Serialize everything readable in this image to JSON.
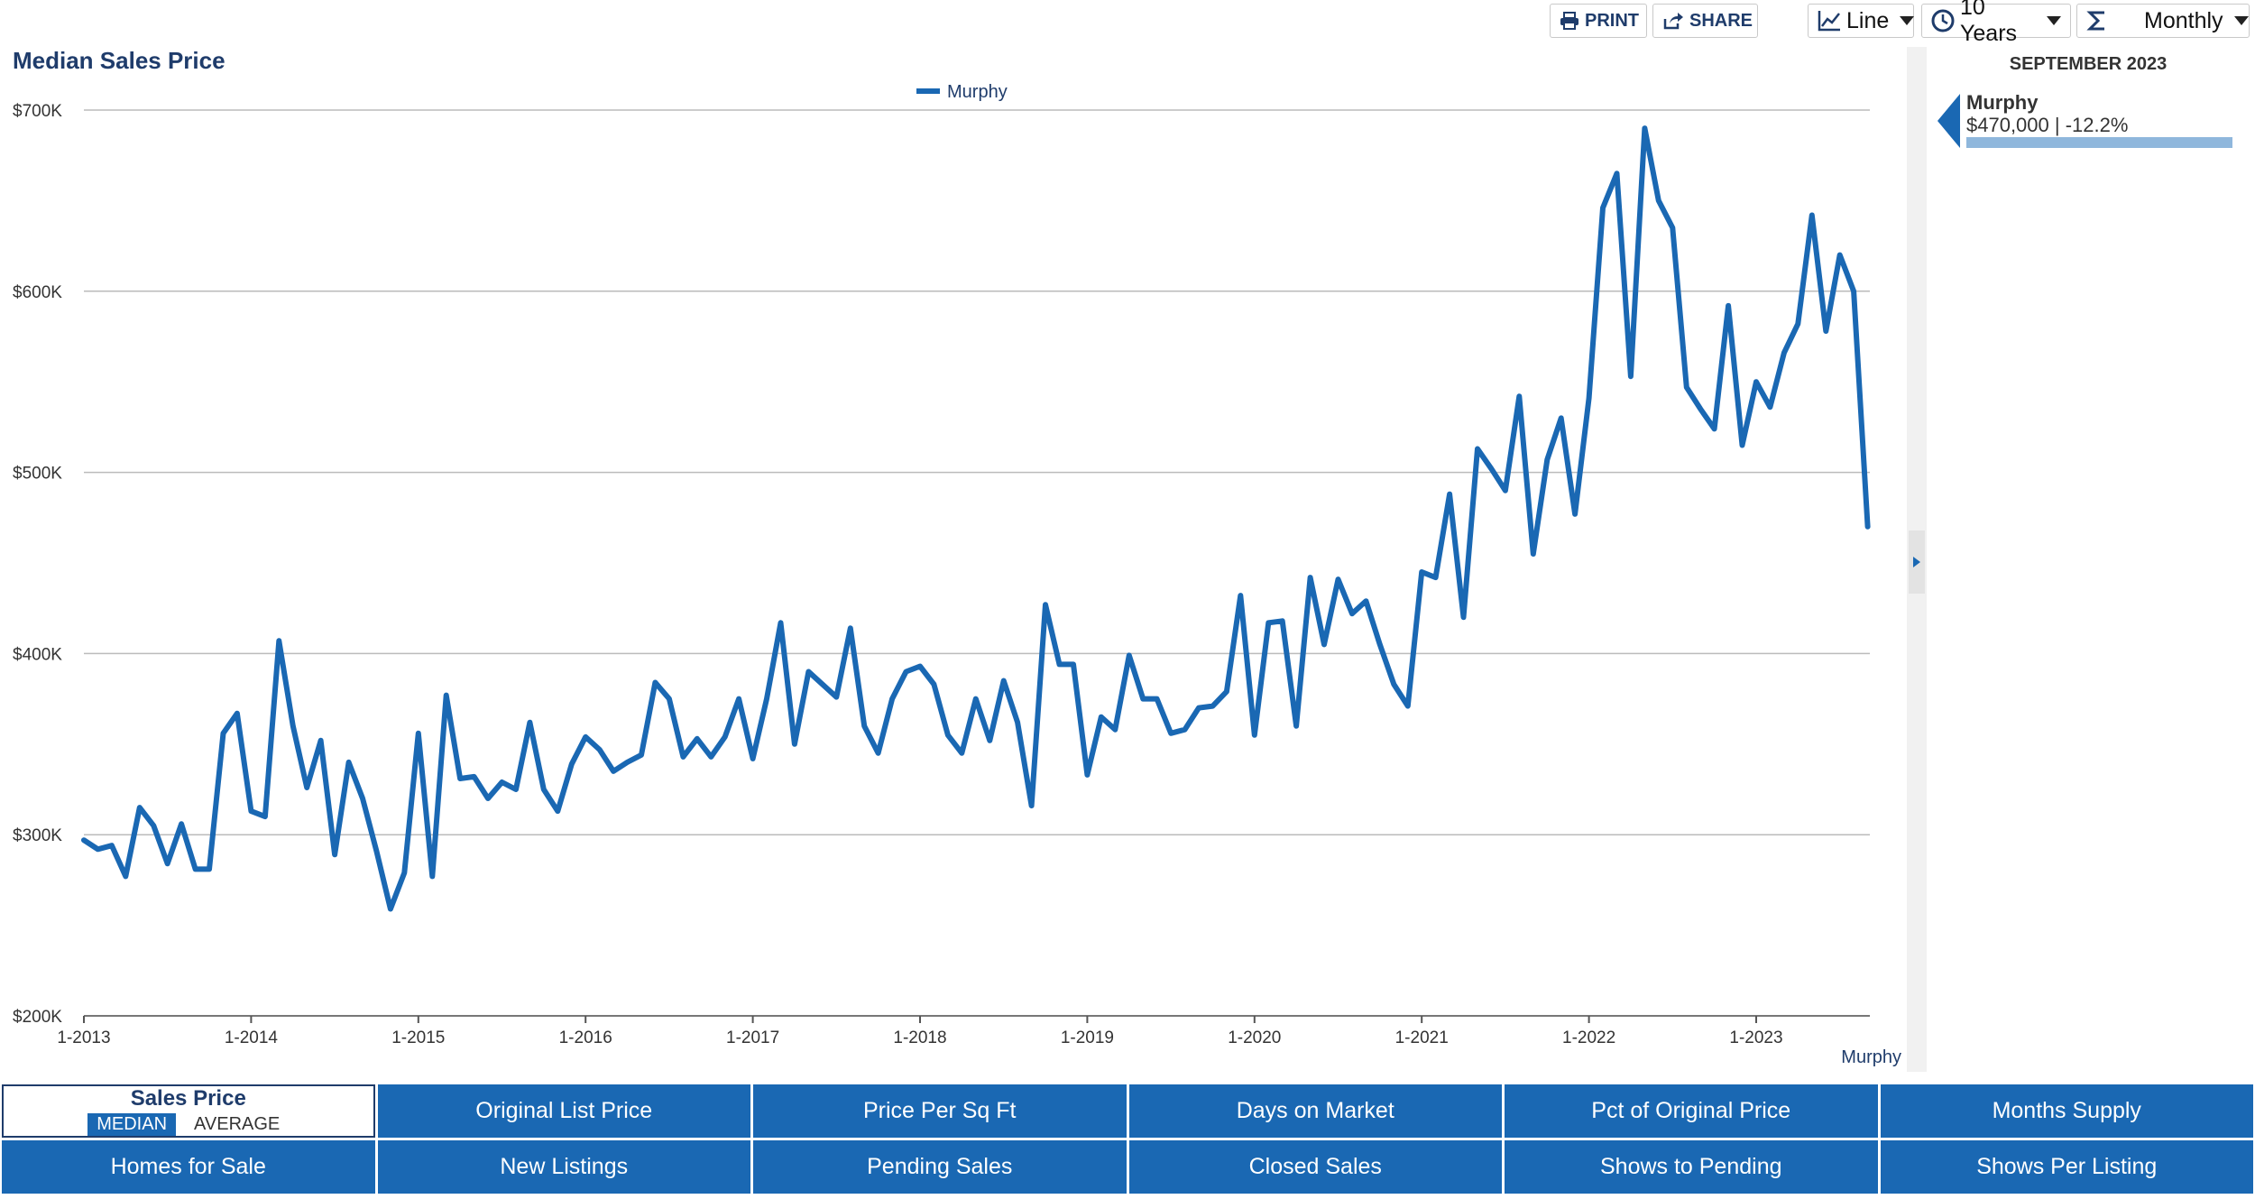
{
  "toolbar": {
    "print_label": "PRINT",
    "share_label": "SHARE",
    "chart_type": "Line",
    "range": "10 Years",
    "interval": "Monthly"
  },
  "page_title": "Median Sales Price",
  "side_panel": {
    "date": "SEPTEMBER 2023",
    "series_name": "Murphy",
    "value_text": "$470,000 | -12.2%"
  },
  "tabs": {
    "active": {
      "title": "Sales Price",
      "options": [
        "MEDIAN",
        "AVERAGE"
      ],
      "selected": "MEDIAN"
    },
    "row1": [
      "Original List Price",
      "Price Per Sq Ft",
      "Days on Market",
      "Pct of Original Price",
      "Months Supply"
    ],
    "row2": [
      "Homes for Sale",
      "New Listings",
      "Pending Sales",
      "Closed Sales",
      "Shows to Pending",
      "Shows Per Listing"
    ]
  },
  "colors": {
    "series": "#1a68b3",
    "title": "#1f3c6b",
    "grid": "#bbbbbb",
    "tab": "#1a68b3"
  },
  "chart_data": {
    "type": "line",
    "title": "Median Sales Price",
    "xlabel": "",
    "ylabel": "",
    "corner_label": "Murphy",
    "legend": [
      "Murphy"
    ],
    "legend_position": "top-center",
    "grid": true,
    "ylim": [
      200000,
      700000
    ],
    "y_ticks": [
      200000,
      300000,
      400000,
      500000,
      600000,
      700000
    ],
    "y_tick_labels": [
      "$200K",
      "$300K",
      "$400K",
      "$500K",
      "$600K",
      "$700K"
    ],
    "x_ticks": [
      "1-2013",
      "1-2014",
      "1-2015",
      "1-2016",
      "1-2017",
      "1-2018",
      "1-2019",
      "1-2020",
      "1-2021",
      "1-2022",
      "1-2023"
    ],
    "x_start": "2013-01",
    "series": [
      {
        "name": "Murphy",
        "values": [
          297000,
          292000,
          294000,
          277000,
          315000,
          305000,
          284000,
          306000,
          281000,
          281000,
          356000,
          367000,
          313000,
          310000,
          407000,
          360000,
          326000,
          352000,
          289000,
          340000,
          320000,
          291000,
          259000,
          279000,
          356000,
          277000,
          377000,
          331000,
          332000,
          320000,
          329000,
          325000,
          362000,
          325000,
          313000,
          339000,
          354000,
          347000,
          335000,
          340000,
          344000,
          384000,
          375000,
          343000,
          353000,
          343000,
          354000,
          375000,
          342000,
          375000,
          417000,
          350000,
          390000,
          383000,
          376000,
          414000,
          360000,
          345000,
          375000,
          390000,
          393000,
          383000,
          355000,
          345000,
          375000,
          352000,
          385000,
          362000,
          316000,
          427000,
          394000,
          394000,
          333000,
          365000,
          358000,
          399000,
          375000,
          375000,
          356000,
          358000,
          370000,
          371000,
          379000,
          432000,
          355000,
          417000,
          418000,
          360000,
          442000,
          405000,
          441000,
          422000,
          429000,
          405000,
          383000,
          371000,
          445000,
          442000,
          488000,
          420000,
          513000,
          502000,
          490000,
          542000,
          455000,
          507000,
          530000,
          477000,
          541000,
          646000,
          665000,
          553000,
          690000,
          650000,
          635000,
          547000,
          535000,
          524000,
          592000,
          515000,
          550000,
          536000,
          566000,
          582000,
          642000,
          578000,
          620000,
          600000,
          470000
        ]
      }
    ]
  }
}
